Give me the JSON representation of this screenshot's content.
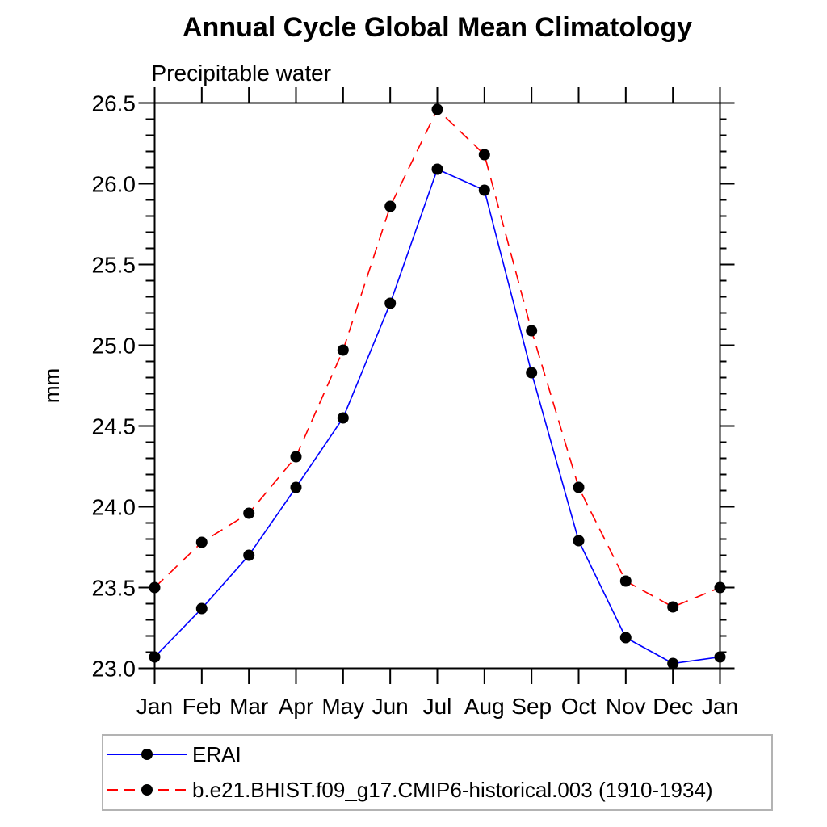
{
  "figure": {
    "title": "Annual Cycle Global Mean Climatology",
    "subtitle": "Precipitable water",
    "background": "#ffffff"
  },
  "chart_data": {
    "type": "line",
    "title": "Annual Cycle Global Mean Climatology",
    "subtitle": "Precipitable water",
    "xlabel": "",
    "ylabel": "mm",
    "x_labels": [
      "Jan",
      "Feb",
      "Mar",
      "Apr",
      "May",
      "Jun",
      "Jul",
      "Aug",
      "Sep",
      "Oct",
      "Nov",
      "Dec",
      "Jan"
    ],
    "ylim": [
      23.0,
      26.5
    ],
    "y_major_step": 0.5,
    "y_minor_step": 0.1,
    "y_tick_labels": [
      "23.0",
      "23.5",
      "24.0",
      "24.5",
      "25.0",
      "25.5",
      "26.0",
      "26.5"
    ],
    "grid": false,
    "legend_position": "bottom",
    "series": [
      {
        "name": "ERAI",
        "color": "#0000ff",
        "style": "solid",
        "marker": "circle",
        "marker_color": "#000000",
        "values": [
          23.07,
          23.37,
          23.7,
          24.12,
          24.55,
          25.26,
          26.09,
          25.96,
          24.83,
          23.79,
          23.19,
          23.03,
          23.07
        ]
      },
      {
        "name": "b.e21.BHIST.f09_g17.CMIP6-historical.003 (1910-1934)",
        "color": "#ff0000",
        "style": "dashed",
        "marker": "circle",
        "marker_color": "#000000",
        "values": [
          23.5,
          23.78,
          23.96,
          24.31,
          24.97,
          25.86,
          26.46,
          26.18,
          25.09,
          24.12,
          23.54,
          23.38,
          23.5
        ]
      }
    ]
  },
  "colors": {
    "axis": "#000000",
    "text": "#000000",
    "legend_border": "#b3b3b3"
  }
}
